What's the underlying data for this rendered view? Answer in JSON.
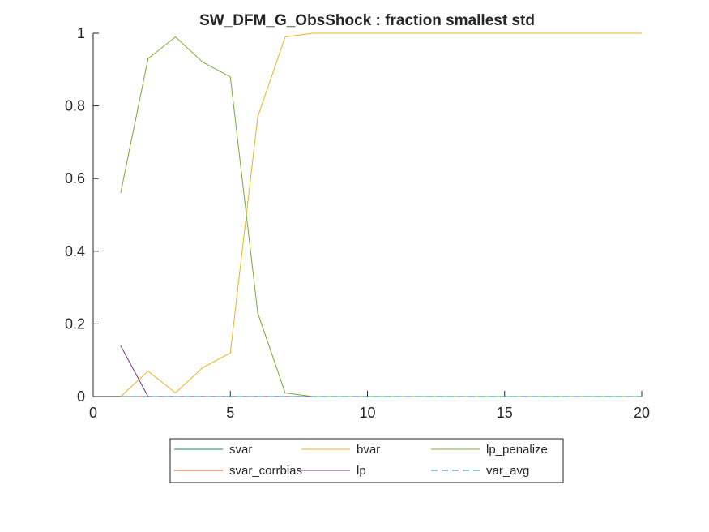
{
  "chart_data": {
    "type": "line",
    "title": "SW_DFM_G_ObsShock : fraction smallest std",
    "xlabel": "",
    "ylabel": "",
    "xlim": [
      0,
      20
    ],
    "ylim": [
      0,
      1
    ],
    "xticks": [
      0,
      5,
      10,
      15,
      20
    ],
    "yticks": [
      0,
      0.2,
      0.4,
      0.6,
      0.8,
      1
    ],
    "xtick_labels": [
      "0",
      "5",
      "10",
      "15",
      "20"
    ],
    "ytick_labels": [
      "0",
      "0.2",
      "0.4",
      "0.6",
      "0.8",
      "1"
    ],
    "grid": false,
    "legend_position": "bottom-outside",
    "x": [
      1,
      2,
      3,
      4,
      5,
      6,
      7,
      8,
      9,
      10,
      11,
      12,
      13,
      14,
      15,
      16,
      17,
      18,
      19,
      20
    ],
    "series": [
      {
        "name": "svar",
        "color": "#0f8a6e",
        "dash": "solid",
        "values": [
          0,
          0,
          0,
          0,
          0,
          0,
          0,
          0,
          0,
          0,
          0,
          0,
          0,
          0,
          0,
          0,
          0,
          0,
          0,
          0
        ]
      },
      {
        "name": "svar_corrbias",
        "color": "#d95319",
        "dash": "solid",
        "values": [
          0,
          0,
          0,
          0,
          0,
          0,
          0,
          0,
          0,
          0,
          0,
          0,
          0,
          0,
          0,
          0,
          0,
          0,
          0,
          0
        ]
      },
      {
        "name": "bvar",
        "color": "#edb120",
        "dash": "solid",
        "values": [
          0,
          0.07,
          0.01,
          0.08,
          0.12,
          0.77,
          0.99,
          1,
          1,
          1,
          1,
          1,
          1,
          1,
          1,
          1,
          1,
          1,
          1,
          1
        ]
      },
      {
        "name": "lp",
        "color": "#7e2f8e",
        "dash": "solid",
        "values": [
          0.14,
          0,
          0,
          0,
          0,
          0,
          0,
          0,
          0,
          0,
          0,
          0,
          0,
          0,
          0,
          0,
          0,
          0,
          0,
          0
        ]
      },
      {
        "name": "lp_penalize",
        "color": "#77ac30",
        "dash": "solid",
        "values": [
          0.56,
          0.93,
          0.99,
          0.92,
          0.88,
          0.23,
          0.01,
          0,
          0,
          0,
          0,
          0,
          0,
          0,
          0,
          0,
          0,
          0,
          0,
          0
        ]
      },
      {
        "name": "var_avg",
        "color": "#1f8fb0",
        "dash": "dashed",
        "values": [
          0,
          0,
          0,
          0,
          0,
          0,
          0,
          0,
          0,
          0,
          0,
          0,
          0,
          0,
          0,
          0,
          0,
          0,
          0,
          0
        ]
      }
    ]
  }
}
